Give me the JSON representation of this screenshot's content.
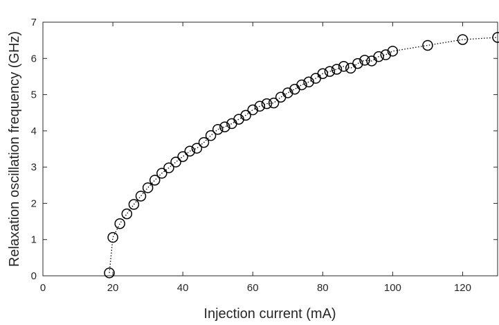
{
  "chart_data": {
    "type": "scatter",
    "title": "",
    "xlabel": "Injection current (mA)",
    "ylabel": "Relaxation oscillation frequency (GHz)",
    "xlim": [
      0,
      130
    ],
    "ylim": [
      0,
      7
    ],
    "xticks": [
      0,
      20,
      40,
      60,
      80,
      100,
      120
    ],
    "yticks": [
      0,
      1,
      2,
      3,
      4,
      5,
      6,
      7
    ],
    "grid": false,
    "legend": "none",
    "marker": "open-circle",
    "line_style": "dotted",
    "colors": {
      "marker": "#000000",
      "line": "#000000",
      "axis": "#262626"
    },
    "series": [
      {
        "x": [
          19,
          20,
          22,
          24,
          26,
          28,
          30,
          32,
          34,
          36,
          38,
          40,
          42,
          44,
          46,
          48,
          50,
          52,
          54,
          56,
          58,
          60,
          62,
          64,
          66,
          68,
          70,
          72,
          74,
          76,
          78,
          80,
          82,
          84,
          86,
          88,
          90,
          92,
          94,
          96,
          98,
          100,
          110,
          120,
          130
        ],
        "y": [
          0.08,
          1.06,
          1.44,
          1.71,
          1.97,
          2.2,
          2.43,
          2.64,
          2.83,
          2.98,
          3.14,
          3.29,
          3.44,
          3.52,
          3.68,
          3.87,
          4.04,
          4.11,
          4.2,
          4.32,
          4.43,
          4.58,
          4.68,
          4.75,
          4.77,
          4.93,
          5.05,
          5.15,
          5.27,
          5.35,
          5.45,
          5.58,
          5.64,
          5.7,
          5.78,
          5.73,
          5.86,
          5.95,
          5.93,
          6.05,
          6.1,
          6.2,
          6.36,
          6.52,
          6.58
        ]
      }
    ]
  }
}
